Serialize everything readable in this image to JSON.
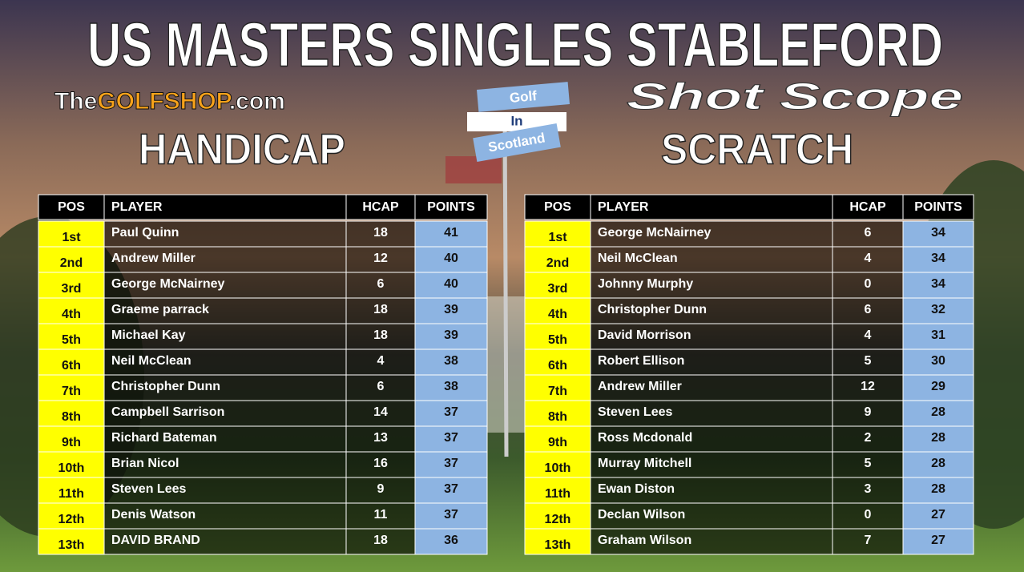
{
  "header": {
    "title": "US MASTERS SINGLES STABLEFORD",
    "sponsor_left": {
      "the": "The",
      "golfshop": "GOLFSHOP",
      "com": ".com"
    },
    "sponsor_right": "Shot Scope",
    "sign": [
      "Golf",
      "In",
      "Scotland"
    ]
  },
  "tables": [
    {
      "heading": "HANDICAP",
      "columns": [
        "POS",
        "PLAYER",
        "HCAP",
        "POINTS"
      ],
      "rows": [
        [
          "1st",
          "Paul Quinn",
          18,
          41
        ],
        [
          "2nd",
          "Andrew Miller",
          12,
          40
        ],
        [
          "3rd",
          "George McNairney",
          6,
          40
        ],
        [
          "4th",
          "Graeme parrack",
          18,
          39
        ],
        [
          "5th",
          "Michael Kay",
          18,
          39
        ],
        [
          "6th",
          "Neil McClean",
          4,
          38
        ],
        [
          "7th",
          "Christopher Dunn",
          6,
          38
        ],
        [
          "8th",
          "Campbell Sarrison",
          14,
          37
        ],
        [
          "9th",
          "Richard Bateman",
          13,
          37
        ],
        [
          "10th",
          "Brian Nicol",
          16,
          37
        ],
        [
          "11th",
          "Steven Lees",
          9,
          37
        ],
        [
          "12th",
          "Denis Watson",
          11,
          37
        ],
        [
          "13th",
          "DAVID BRAND",
          18,
          36
        ]
      ]
    },
    {
      "heading": "SCRATCH",
      "columns": [
        "POS",
        "PLAYER",
        "HCAP",
        "POINTS"
      ],
      "rows": [
        [
          "1st",
          "George McNairney",
          6,
          34
        ],
        [
          "2nd",
          "Neil McClean",
          4,
          34
        ],
        [
          "3rd",
          "Johnny Murphy",
          0,
          34
        ],
        [
          "4th",
          "Christopher Dunn",
          6,
          32
        ],
        [
          "5th",
          "David Morrison",
          4,
          31
        ],
        [
          "6th",
          "Robert Ellison",
          5,
          30
        ],
        [
          "7th",
          "Andrew Miller",
          12,
          29
        ],
        [
          "8th",
          "Steven Lees",
          9,
          28
        ],
        [
          "9th",
          "Ross Mcdonald",
          2,
          28
        ],
        [
          "10th",
          "Murray Mitchell",
          5,
          28
        ],
        [
          "11th",
          "Ewan Diston",
          3,
          28
        ],
        [
          "12th",
          "Declan Wilson",
          0,
          27
        ],
        [
          "13th",
          "Graham Wilson",
          7,
          27
        ]
      ]
    }
  ]
}
